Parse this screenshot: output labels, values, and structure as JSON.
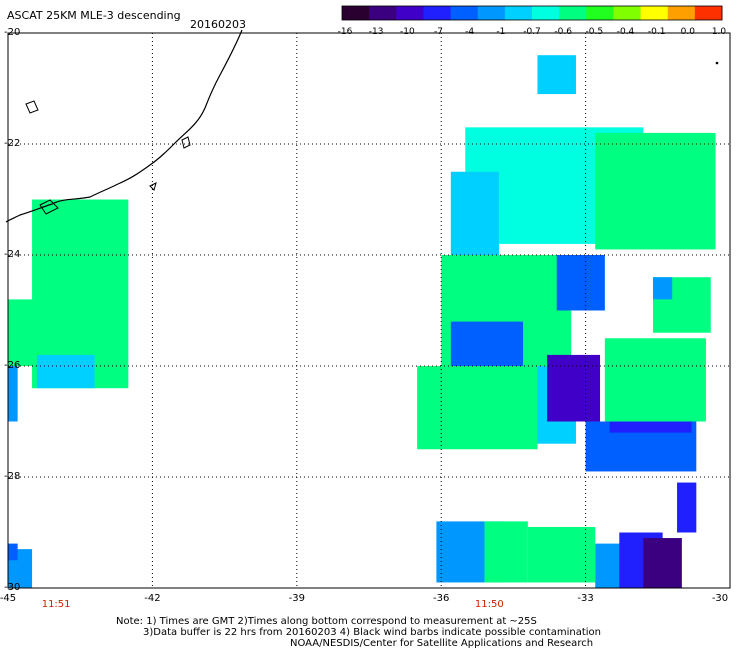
{
  "header": {
    "title": "ASCAT 25KM MLE-3 descending",
    "date": "20160203"
  },
  "colorbar": {
    "labels": [
      "-16",
      "-13",
      "-10",
      "-7",
      "-4",
      "-1",
      "-0.7",
      "-0.6",
      "-0.5",
      "-0.4",
      "-0.1",
      "0.0",
      "1.0"
    ],
    "colors": [
      "#2a0030",
      "#3a0080",
      "#4000c8",
      "#2020ff",
      "#0060ff",
      "#0098ff",
      "#00d0ff",
      "#00ffe0",
      "#00ff80",
      "#20ff20",
      "#80ff00",
      "#ffff00",
      "#ffa000",
      "#ff3000"
    ]
  },
  "pass_times": [
    {
      "lon": -44,
      "label": "11:51"
    },
    {
      "lon": -35,
      "label": "11:50"
    }
  ],
  "notes": {
    "line1": "Note: 1) Times are GMT 2)Times along bottom correspond to measurement at ~25S",
    "line2": "3)Data buffer is 22 hrs from 20160203 4) Black wind barbs indicate possible contamination",
    "line3": "NOAA/NESDIS/Center for Satellite Applications and Research"
  },
  "chart_data": {
    "type": "heatmap",
    "title": "ASCAT 25KM MLE-3 descending",
    "subtitle": "20160203",
    "xlabel": "",
    "ylabel": "",
    "x_ticks": [
      "-45",
      "-42",
      "-39",
      "-36",
      "-33",
      "-30"
    ],
    "y_ticks": [
      "-20",
      "-22",
      "-24",
      "-26",
      "-28",
      "-30"
    ],
    "xlim": [
      -45,
      -30
    ],
    "ylim": [
      -30,
      -20
    ],
    "grid": true,
    "units_legend": "MLE-3 colour scale",
    "regions": [
      {
        "lon": [
          -44.5,
          -42.5
        ],
        "lat": [
          -26.4,
          -23.0
        ],
        "value": -0.5
      },
      {
        "lon": [
          -45.0,
          -44.3
        ],
        "lat": [
          -26.0,
          -24.8
        ],
        "value": -0.5
      },
      {
        "lon": [
          -44.4,
          -43.2
        ],
        "lat": [
          -26.4,
          -25.8
        ],
        "value": -0.7
      },
      {
        "lon": [
          -45.0,
          -44.8
        ],
        "lat": [
          -27.0,
          -26.0
        ],
        "value": -1
      },
      {
        "lon": [
          -45.0,
          -44.5
        ],
        "lat": [
          -30.0,
          -29.3
        ],
        "value": -1
      },
      {
        "lon": [
          -45.0,
          -44.8
        ],
        "lat": [
          -29.5,
          -29.2
        ],
        "value": -4
      },
      {
        "lon": [
          -34.0,
          -33.2
        ],
        "lat": [
          -21.1,
          -20.4
        ],
        "value": -0.7
      },
      {
        "lon": [
          -35.5,
          -31.8
        ],
        "lat": [
          -23.8,
          -21.7
        ],
        "value": -0.6
      },
      {
        "lon": [
          -32.8,
          -30.3
        ],
        "lat": [
          -23.9,
          -21.8
        ],
        "value": -0.5
      },
      {
        "lon": [
          -35.8,
          -34.8
        ],
        "lat": [
          -24.0,
          -22.5
        ],
        "value": -0.7
      },
      {
        "lon": [
          -36.0,
          -33.3
        ],
        "lat": [
          -26.0,
          -24.0
        ],
        "value": -0.5
      },
      {
        "lon": [
          -33.6,
          -32.6
        ],
        "lat": [
          -25.0,
          -24.0
        ],
        "value": -4
      },
      {
        "lon": [
          -35.8,
          -34.3
        ],
        "lat": [
          -26.0,
          -25.2
        ],
        "value": -4
      },
      {
        "lon": [
          -34.4,
          -33.2
        ],
        "lat": [
          -27.4,
          -26.0
        ],
        "value": -0.7
      },
      {
        "lon": [
          -36.5,
          -34.0
        ],
        "lat": [
          -27.5,
          -26.0
        ],
        "value": -0.5
      },
      {
        "lon": [
          -33.8,
          -32.7
        ],
        "lat": [
          -27.0,
          -25.8
        ],
        "value": -10
      },
      {
        "lon": [
          -33.0,
          -30.7
        ],
        "lat": [
          -27.9,
          -27.0
        ],
        "value": -4
      },
      {
        "lon": [
          -32.5,
          -30.8
        ],
        "lat": [
          -27.2,
          -26.6
        ],
        "value": -7
      },
      {
        "lon": [
          -32.6,
          -30.5
        ],
        "lat": [
          -27.0,
          -25.5
        ],
        "value": -0.5
      },
      {
        "lon": [
          -31.6,
          -30.4
        ],
        "lat": [
          -25.4,
          -24.4
        ],
        "value": -0.5
      },
      {
        "lon": [
          -31.6,
          -31.2
        ],
        "lat": [
          -24.8,
          -24.4
        ],
        "value": -1
      },
      {
        "lon": [
          -31.1,
          -30.7
        ],
        "lat": [
          -29.0,
          -28.1
        ],
        "value": -7
      },
      {
        "lon": [
          -36.1,
          -34.7
        ],
        "lat": [
          -29.9,
          -28.8
        ],
        "value": -1
      },
      {
        "lon": [
          -35.1,
          -34.2
        ],
        "lat": [
          -29.9,
          -28.8
        ],
        "value": -0.5
      },
      {
        "lon": [
          -34.2,
          -32.8
        ],
        "lat": [
          -29.9,
          -28.9
        ],
        "value": -0.5
      },
      {
        "lon": [
          -32.8,
          -32.2
        ],
        "lat": [
          -30.0,
          -29.2
        ],
        "value": -1
      },
      {
        "lon": [
          -32.3,
          -31.4
        ],
        "lat": [
          -30.0,
          -29.0
        ],
        "value": -7
      },
      {
        "lon": [
          -31.8,
          -31.0
        ],
        "lat": [
          -30.0,
          -29.1
        ],
        "value": -13
      }
    ]
  }
}
